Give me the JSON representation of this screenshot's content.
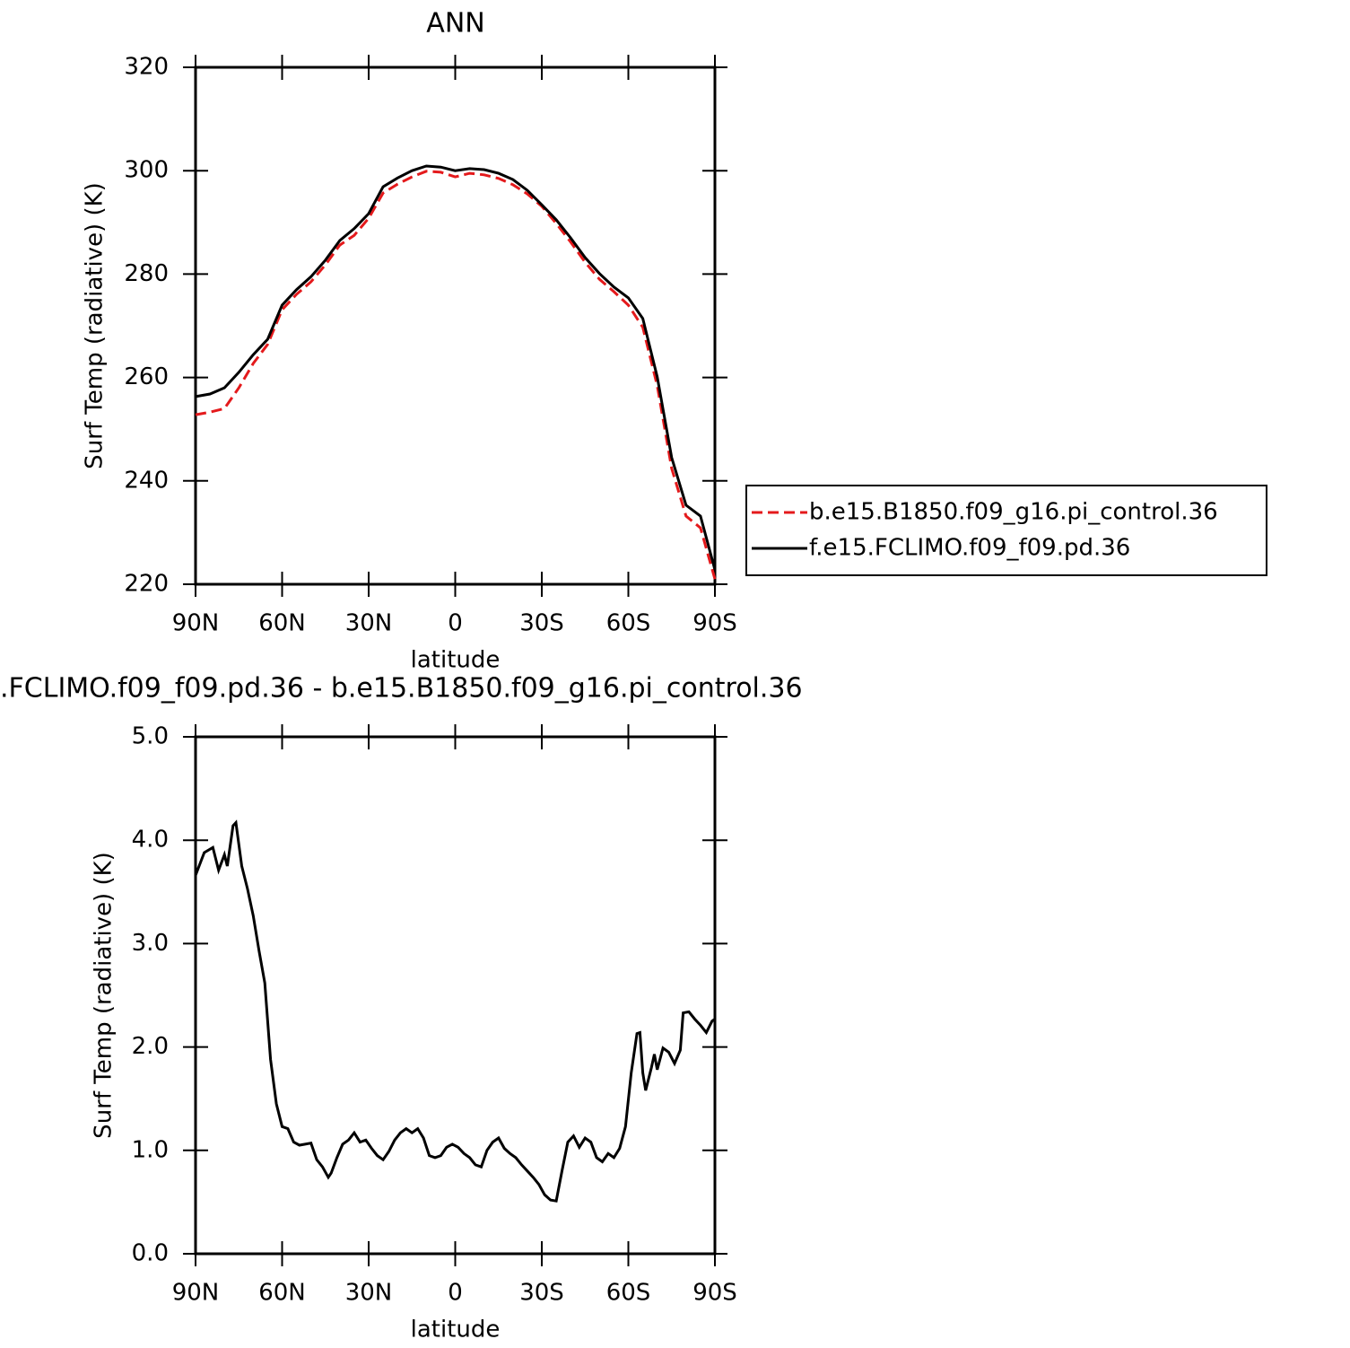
{
  "chart_data": [
    {
      "type": "line",
      "title": "ANN",
      "xlabel": "latitude",
      "ylabel": "Surf Temp (radiative) (K)",
      "x": [
        90,
        85,
        80,
        75,
        70,
        65,
        60,
        55,
        50,
        45,
        40,
        35,
        30,
        25,
        20,
        15,
        10,
        5,
        0,
        -5,
        -10,
        -15,
        -20,
        -25,
        -30,
        -35,
        -40,
        -45,
        -50,
        -55,
        -60,
        -65,
        -70,
        -75,
        -80,
        -85,
        -90
      ],
      "series": [
        {
          "name": "b.e15.B1850.f09_g16.pi_control.36",
          "color": "#e41a1c",
          "line_style": "dashed",
          "values": [
            252.8,
            253.3,
            254,
            258,
            262.7,
            266.4,
            273.1,
            276.1,
            278.5,
            281.8,
            285.6,
            287.5,
            290.8,
            295.7,
            297.4,
            298.8,
            299.9,
            299.7,
            298.8,
            299.5,
            299.2,
            298.5,
            297.3,
            295.5,
            293.1,
            289.8,
            286.2,
            282.3,
            279,
            276.6,
            274,
            269.7,
            258.4,
            242.4,
            233.2,
            230.9,
            221
          ]
        },
        {
          "name": "f.e15.FCLIMO.f09_f09.pd.36",
          "color": "#000000",
          "line_style": "solid",
          "values": [
            256.3,
            256.8,
            258,
            261,
            264.4,
            267.4,
            274,
            277,
            279.5,
            282.7,
            286.5,
            288.8,
            291.7,
            296.9,
            298.6,
            300,
            300.9,
            300.7,
            300,
            300.4,
            300.2,
            299.5,
            298.3,
            296.2,
            293.4,
            290.5,
            287,
            283.2,
            280.1,
            277.5,
            275.4,
            271.4,
            260.1,
            244.5,
            235.3,
            233.2,
            222.8
          ]
        }
      ],
      "xlim": [
        90,
        -90
      ],
      "xticks": [
        {
          "value": 90,
          "label": "90N"
        },
        {
          "value": 60,
          "label": "60N"
        },
        {
          "value": 30,
          "label": "30N"
        },
        0,
        {
          "value": -30,
          "label": "30S"
        },
        {
          "value": -60,
          "label": "60S"
        },
        {
          "value": -90,
          "label": "90S"
        }
      ],
      "ylim": [
        220,
        320
      ],
      "yticks": [
        220,
        240,
        260,
        280,
        300,
        320
      ],
      "legend": "right"
    },
    {
      "type": "line",
      "title": ".FCLIMO.f09_f09.pd.36 - b.e15.B1850.f09_g16.pi_control.36",
      "xlabel": "latitude",
      "ylabel": "Surf Temp (radiative) (K)",
      "x": [
        90,
        87,
        84,
        82,
        80,
        79,
        77,
        76,
        74,
        72,
        70,
        68,
        66,
        64,
        62,
        60,
        58,
        56,
        54,
        52,
        50,
        48,
        46,
        44,
        43,
        41,
        39,
        37,
        35,
        33,
        31,
        29,
        27,
        25,
        23,
        21,
        19,
        17,
        15,
        13,
        11,
        9,
        7,
        5,
        3,
        1,
        -1,
        -3,
        -5,
        -7,
        -9,
        -11,
        -13,
        -15,
        -17,
        -19,
        -21,
        -23,
        -25,
        -27,
        -29,
        -31,
        -33,
        -35,
        -37,
        -39,
        -41,
        -43,
        -45,
        -47,
        -49,
        -51,
        -53,
        -55,
        -57,
        -59,
        -61,
        -63,
        -64,
        -65,
        -66,
        -68,
        -69,
        -70,
        -72,
        -74,
        -76,
        -78,
        -79,
        -81,
        -83,
        -85,
        -87,
        -89,
        -90
      ],
      "series": [
        {
          "color": "#000000",
          "line_style": "solid",
          "values": [
            3.66,
            3.88,
            3.93,
            3.71,
            3.86,
            3.75,
            4.14,
            4.17,
            3.75,
            3.53,
            3.27,
            2.93,
            2.62,
            1.88,
            1.45,
            1.23,
            1.21,
            1.08,
            1.05,
            1.06,
            1.07,
            0.91,
            0.84,
            0.74,
            0.78,
            0.93,
            1.06,
            1.1,
            1.17,
            1.08,
            1.1,
            1.02,
            0.95,
            0.91,
            0.99,
            1.1,
            1.17,
            1.21,
            1.17,
            1.21,
            1.12,
            0.95,
            0.93,
            0.95,
            1.03,
            1.06,
            1.03,
            0.97,
            0.93,
            0.86,
            0.84,
            1.0,
            1.08,
            1.12,
            1.02,
            0.97,
            0.93,
            0.86,
            0.8,
            0.74,
            0.67,
            0.57,
            0.52,
            0.51,
            0.8,
            1.08,
            1.14,
            1.03,
            1.12,
            1.08,
            0.93,
            0.89,
            0.97,
            0.93,
            1.02,
            1.23,
            1.75,
            2.13,
            2.14,
            1.75,
            1.58,
            1.8,
            1.93,
            1.78,
            1.99,
            1.95,
            1.84,
            1.97,
            2.33,
            2.34,
            2.27,
            2.21,
            2.14,
            2.25,
            2.27
          ]
        }
      ],
      "xlim": [
        90,
        -90
      ],
      "xticks": [
        {
          "value": 90,
          "label": "90N"
        },
        {
          "value": 60,
          "label": "60N"
        },
        {
          "value": 30,
          "label": "30N"
        },
        0,
        {
          "value": -30,
          "label": "30S"
        },
        {
          "value": -60,
          "label": "60S"
        },
        {
          "value": -90,
          "label": "90S"
        }
      ],
      "ylim": [
        0,
        5
      ],
      "yticks": [
        {
          "value": 0,
          "label": "0.0"
        },
        {
          "value": 1,
          "label": "1.0"
        },
        {
          "value": 2,
          "label": "2.0"
        },
        {
          "value": 3,
          "label": "3.0"
        },
        {
          "value": 4,
          "label": "4.0"
        },
        {
          "value": 5,
          "label": "5.0"
        }
      ]
    }
  ]
}
